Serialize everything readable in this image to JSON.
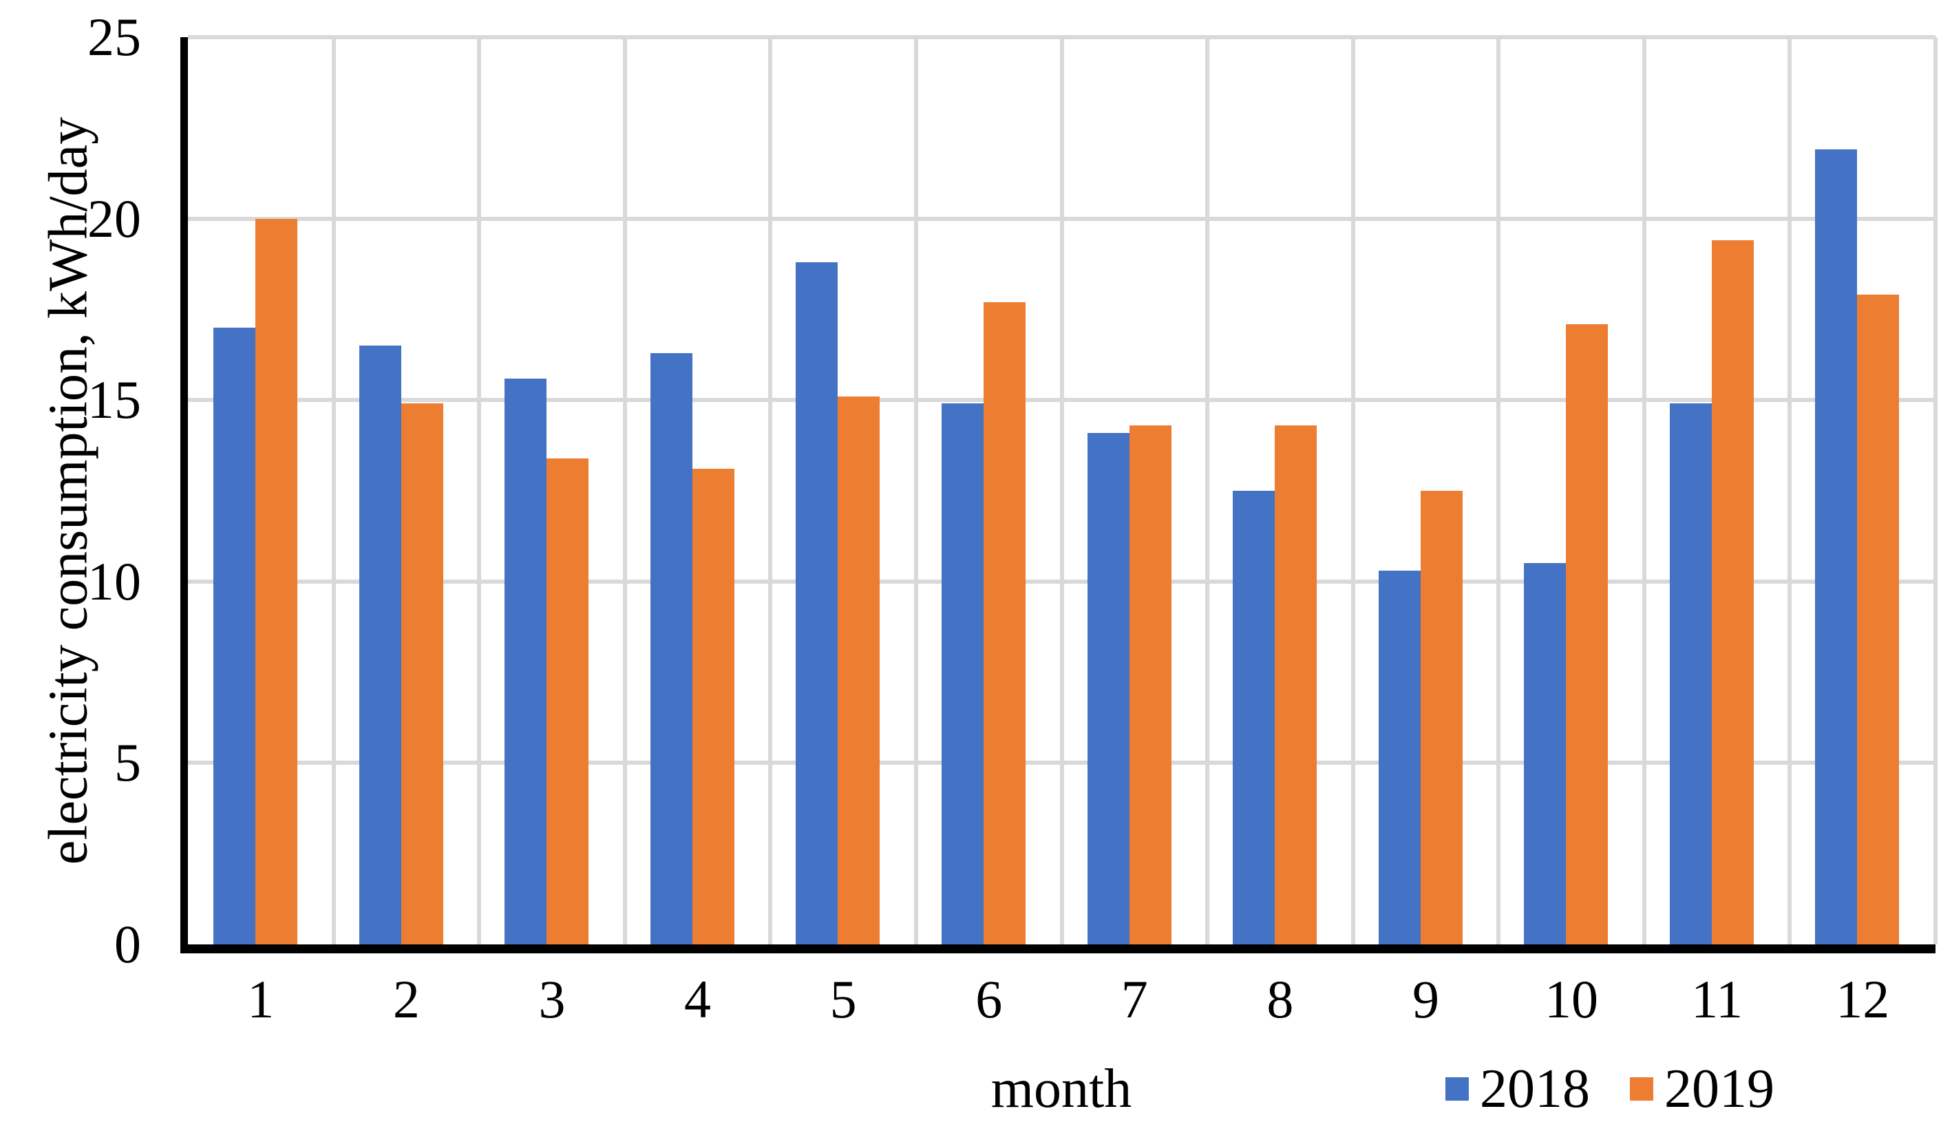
{
  "chart_data": {
    "type": "bar",
    "title": "",
    "categories": [
      "1",
      "2",
      "3",
      "4",
      "5",
      "6",
      "7",
      "8",
      "9",
      "10",
      "11",
      "12"
    ],
    "series": [
      {
        "name": "2018",
        "color": "#4472C4",
        "values": [
          17.0,
          16.5,
          15.6,
          16.3,
          18.8,
          14.9,
          14.1,
          12.5,
          10.3,
          10.5,
          14.9,
          21.9
        ]
      },
      {
        "name": "2019",
        "color": "#ED7D31",
        "values": [
          20.0,
          14.9,
          13.4,
          13.1,
          15.1,
          17.7,
          14.3,
          14.3,
          12.5,
          17.1,
          19.4,
          17.9
        ]
      }
    ],
    "xlabel": "month",
    "ylabel": "electricity consumption, kWh/day",
    "ylim": [
      0,
      25
    ],
    "yticks": [
      0,
      5,
      10,
      15,
      20,
      25
    ],
    "grid": true,
    "legend_position": "bottom-right"
  },
  "colors": {
    "background": "#FFFFFF",
    "gridline": "#D9D9D9",
    "axis": "#000000",
    "text": "#000000",
    "series_2018": "#4472C4",
    "series_2019": "#ED7D31"
  }
}
